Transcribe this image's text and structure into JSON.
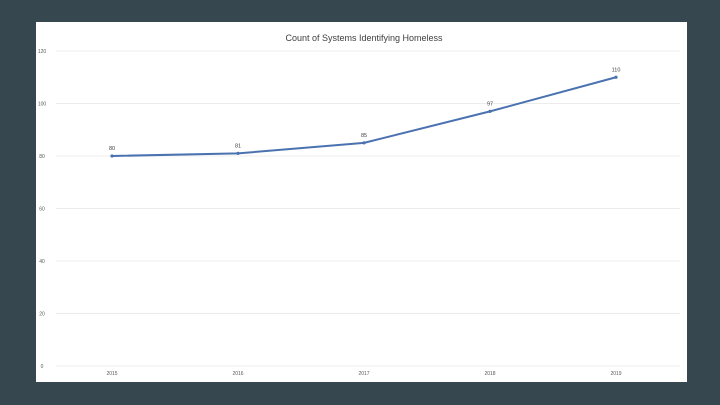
{
  "chart_data": {
    "type": "line",
    "title": "Count of Systems Identifying Homeless",
    "xlabel": "",
    "ylabel": "",
    "categories": [
      "2015",
      "2016",
      "2017",
      "2018",
      "2019"
    ],
    "series": [
      {
        "values": [
          80,
          81,
          85,
          97,
          110
        ],
        "color": "#4a72b0"
      }
    ],
    "ylim": [
      0,
      120
    ],
    "yticks": [
      "0",
      "20",
      "40",
      "60",
      "80",
      "100",
      "120"
    ],
    "data_labels": [
      "80",
      "81",
      "85",
      "97",
      "110"
    ],
    "grid": true,
    "legend": "none"
  }
}
